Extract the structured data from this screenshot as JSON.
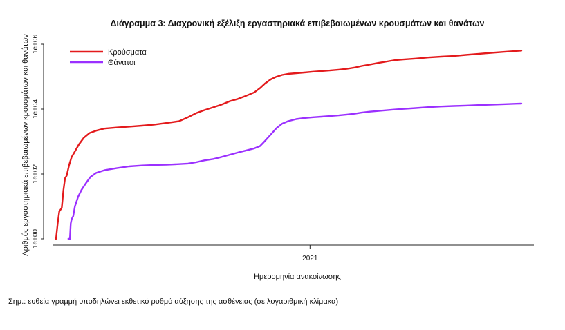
{
  "chart_data": {
    "type": "line",
    "title": "Διάγραμμα 3: Διαχρονική εξέλιξη εργαστηριακά επιβεβαιωμένων κρουσμάτων και θανάτων",
    "xlabel": "Ημερομηνία ανακοίνωσης",
    "ylabel": "Αριθμός εργαστηριακά επιβεβαιωμένων κρουσμάτων και θανάτων",
    "y_scale": "log",
    "ylim": [
      1,
      1000000
    ],
    "y_ticks": [
      {
        "value": 1,
        "label": "1e+00"
      },
      {
        "value": 100,
        "label": "1e+02"
      },
      {
        "value": 10000,
        "label": "1e+04"
      },
      {
        "value": 1000000,
        "label": "1e+06"
      }
    ],
    "xlim": [
      "2020-02-26",
      "2021-09-16"
    ],
    "x_ticks": [
      {
        "value": "2021-01-01",
        "label": "2021"
      }
    ],
    "legend": "top-left",
    "grid": false,
    "series": [
      {
        "name": "Κρούσματα",
        "color": "#e31a1c",
        "points": [
          [
            "2020-02-26",
            1
          ],
          [
            "2020-02-28",
            3
          ],
          [
            "2020-03-01",
            7
          ],
          [
            "2020-03-04",
            9
          ],
          [
            "2020-03-06",
            31
          ],
          [
            "2020-03-08",
            73
          ],
          [
            "2020-03-10",
            89
          ],
          [
            "2020-03-13",
            190
          ],
          [
            "2020-03-16",
            331
          ],
          [
            "2020-03-20",
            495
          ],
          [
            "2020-03-25",
            821
          ],
          [
            "2020-03-31",
            1314
          ],
          [
            "2020-04-07",
            1832
          ],
          [
            "2020-04-15",
            2170
          ],
          [
            "2020-04-25",
            2506
          ],
          [
            "2020-05-10",
            2710
          ],
          [
            "2020-05-25",
            2878
          ],
          [
            "2020-06-10",
            3088
          ],
          [
            "2020-06-25",
            3340
          ],
          [
            "2020-07-10",
            3732
          ],
          [
            "2020-07-25",
            4227
          ],
          [
            "2020-08-05",
            5623
          ],
          [
            "2020-08-15",
            7472
          ],
          [
            "2020-08-25",
            9280
          ],
          [
            "2020-09-05",
            11386
          ],
          [
            "2020-09-15",
            13730
          ],
          [
            "2020-09-25",
            17444
          ],
          [
            "2020-10-05",
            20541
          ],
          [
            "2020-10-15",
            25802
          ],
          [
            "2020-10-25",
            32752
          ],
          [
            "2020-11-01",
            44414
          ],
          [
            "2020-11-07",
            61355
          ],
          [
            "2020-11-14",
            82034
          ],
          [
            "2020-11-21",
            99306
          ],
          [
            "2020-11-28",
            113082
          ],
          [
            "2020-12-05",
            121705
          ],
          [
            "2020-12-15",
            127926
          ],
          [
            "2020-12-25",
            134330
          ],
          [
            "2021-01-05",
            142453
          ],
          [
            "2021-01-15",
            148465
          ],
          [
            "2021-01-25",
            154796
          ],
          [
            "2021-02-05",
            163946
          ],
          [
            "2021-02-15",
            174998
          ],
          [
            "2021-02-25",
            192064
          ],
          [
            "2021-03-05",
            214062
          ],
          [
            "2021-03-15",
            236512
          ],
          [
            "2021-03-25",
            263427
          ],
          [
            "2021-04-05",
            293398
          ],
          [
            "2021-04-15",
            324615
          ],
          [
            "2021-04-25",
            339346
          ],
          [
            "2021-05-10",
            361834
          ],
          [
            "2021-05-25",
            389678
          ],
          [
            "2021-06-10",
            413235
          ],
          [
            "2021-06-25",
            433145
          ],
          [
            "2021-07-10",
            467889
          ],
          [
            "2021-07-25",
            502391
          ],
          [
            "2021-08-10",
            541736
          ],
          [
            "2021-08-25",
            578562
          ],
          [
            "2021-09-10",
            617912
          ],
          [
            "2021-09-16",
            634586
          ]
        ]
      },
      {
        "name": "Θάνατοι",
        "color": "#9b30ff",
        "points": [
          [
            "2020-03-12",
            1
          ],
          [
            "2020-03-14",
            1
          ],
          [
            "2020-03-15",
            3
          ],
          [
            "2020-03-16",
            4
          ],
          [
            "2020-03-18",
            5
          ],
          [
            "2020-03-20",
            10
          ],
          [
            "2020-03-24",
            20
          ],
          [
            "2020-03-28",
            32
          ],
          [
            "2020-04-02",
            50
          ],
          [
            "2020-04-08",
            81
          ],
          [
            "2020-04-15",
            108
          ],
          [
            "2020-04-25",
            130
          ],
          [
            "2020-05-10",
            151
          ],
          [
            "2020-05-25",
            171
          ],
          [
            "2020-06-10",
            183
          ],
          [
            "2020-06-25",
            190
          ],
          [
            "2020-07-10",
            193
          ],
          [
            "2020-07-25",
            201
          ],
          [
            "2020-08-05",
            210
          ],
          [
            "2020-08-15",
            230
          ],
          [
            "2020-08-25",
            263
          ],
          [
            "2020-09-05",
            290
          ],
          [
            "2020-09-15",
            334
          ],
          [
            "2020-09-25",
            393
          ],
          [
            "2020-10-05",
            458
          ],
          [
            "2020-10-15",
            532
          ],
          [
            "2020-10-25",
            617
          ],
          [
            "2020-11-01",
            724
          ],
          [
            "2020-11-07",
            1040
          ],
          [
            "2020-11-14",
            1630
          ],
          [
            "2020-11-21",
            2568
          ],
          [
            "2020-11-28",
            3558
          ],
          [
            "2020-12-05",
            4227
          ],
          [
            "2020-12-15",
            4921
          ],
          [
            "2020-12-25",
            5326
          ],
          [
            "2021-01-05",
            5604
          ],
          [
            "2021-01-15",
            5831
          ],
          [
            "2021-01-25",
            6092
          ],
          [
            "2021-02-05",
            6418
          ],
          [
            "2021-02-15",
            6797
          ],
          [
            "2021-02-25",
            7222
          ],
          [
            "2021-03-05",
            7777
          ],
          [
            "2021-03-15",
            8335
          ],
          [
            "2021-03-25",
            8742
          ],
          [
            "2021-04-05",
            9226
          ],
          [
            "2021-04-15",
            9712
          ],
          [
            "2021-04-25",
            10151
          ],
          [
            "2021-05-10",
            10765
          ],
          [
            "2021-05-25",
            11460
          ],
          [
            "2021-06-10",
            12025
          ],
          [
            "2021-06-25",
            12448
          ],
          [
            "2021-07-10",
            12840
          ],
          [
            "2021-07-25",
            13258
          ],
          [
            "2021-08-10",
            13735
          ],
          [
            "2021-08-25",
            14186
          ],
          [
            "2021-09-10",
            14640
          ],
          [
            "2021-09-16",
            14789
          ]
        ]
      }
    ]
  },
  "footnote": "Σημ.: ευθεία γραμμή υποδηλώνει εκθετικό ρυθμό αύξησης της ασθένειας (σε λογαριθμική κλίμακα)"
}
